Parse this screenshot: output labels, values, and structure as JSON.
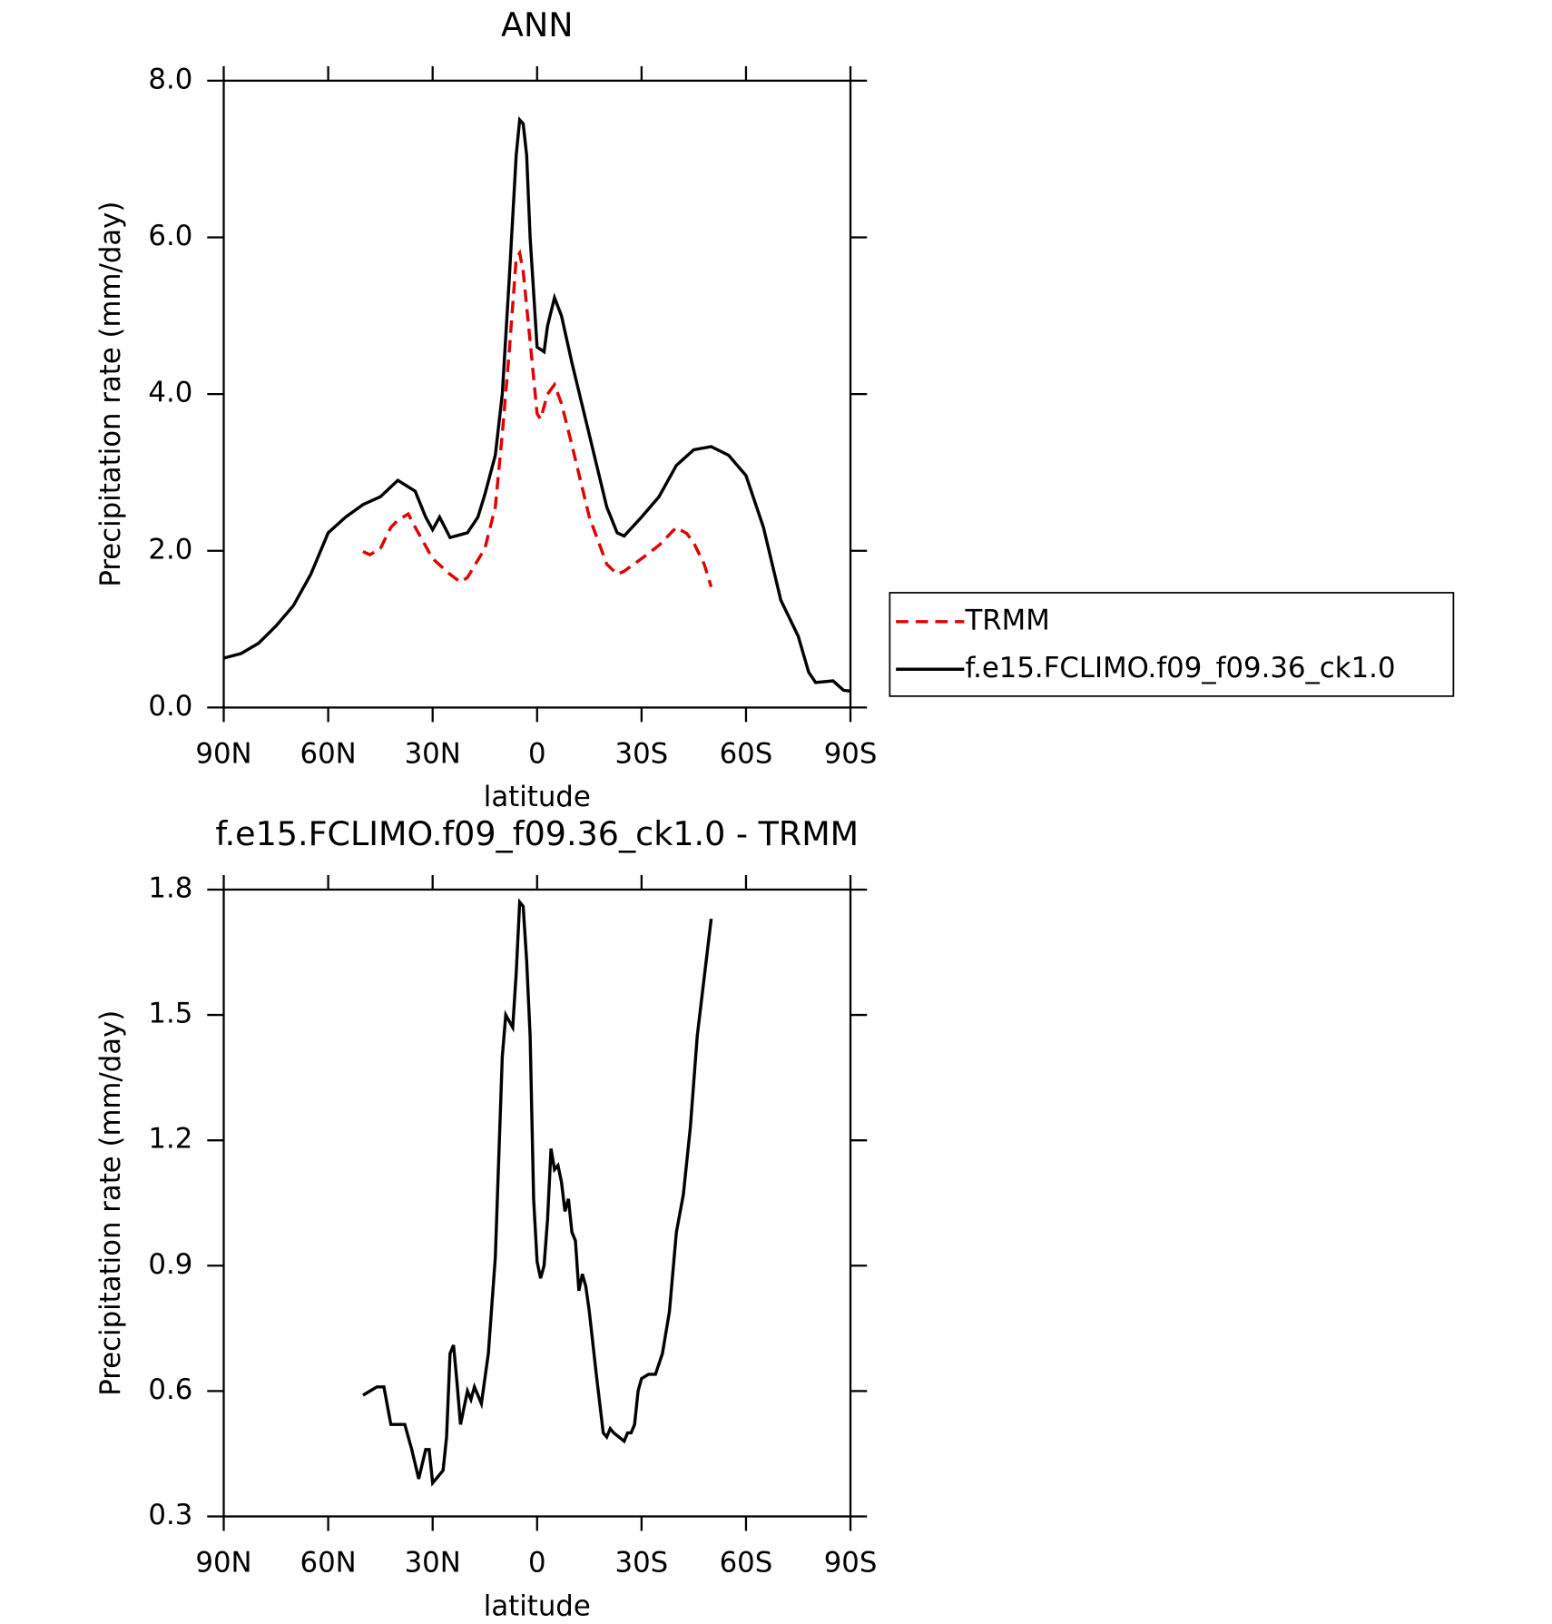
{
  "chart_data": [
    {
      "type": "line",
      "title": "ANN",
      "xlabel": "latitude",
      "ylabel": "Precipitation rate (mm/day)",
      "xlim": [
        90,
        -90
      ],
      "xticks": [
        {
          "value": 90,
          "label": "90N"
        },
        {
          "value": 60,
          "label": "60N"
        },
        {
          "value": 30,
          "label": "30N"
        },
        0,
        {
          "value": -30,
          "label": "30S"
        },
        {
          "value": -60,
          "label": "60S"
        },
        {
          "value": -90,
          "label": "90S"
        }
      ],
      "ylim": [
        0,
        8
      ],
      "yticks": [
        {
          "value": 0,
          "label": "0.0"
        },
        {
          "value": 2,
          "label": "2.0"
        },
        {
          "value": 4,
          "label": "4.0"
        },
        {
          "value": 6,
          "label": "6.0"
        },
        {
          "value": 8,
          "label": "8.0"
        }
      ],
      "legend": "right",
      "series": [
        {
          "name": "TRMM",
          "color": "#e00000",
          "linestyle": "dashed",
          "x": [
            50,
            48,
            45,
            42,
            40,
            37,
            35,
            30,
            25,
            22,
            20,
            15,
            12,
            10,
            8,
            6,
            5,
            4,
            2,
            0,
            -1,
            -3,
            -5,
            -7,
            -10,
            -15,
            -20,
            -23,
            -25,
            -30,
            -35,
            -40,
            -43,
            -45,
            -48,
            -50
          ],
          "values": [
            1.99,
            1.95,
            2.03,
            2.3,
            2.39,
            2.47,
            2.3,
            1.9,
            1.7,
            1.6,
            1.66,
            2.03,
            2.56,
            3.49,
            4.54,
            5.73,
            5.8,
            5.57,
            4.67,
            3.75,
            3.68,
            4.0,
            4.12,
            3.88,
            3.35,
            2.43,
            1.83,
            1.7,
            1.74,
            1.9,
            2.07,
            2.3,
            2.22,
            2.1,
            1.83,
            1.54
          ]
        },
        {
          "name": "f.e15.FCLIMO.f09_f09.36_ck1.0",
          "color": "#000000",
          "linestyle": "solid",
          "x": [
            90,
            85,
            80,
            75,
            70,
            65,
            60,
            55,
            50,
            45,
            40,
            35,
            32,
            30,
            28,
            25,
            20,
            17,
            15,
            12,
            10,
            8,
            6,
            5,
            4,
            3,
            2,
            0,
            -2,
            -3,
            -5,
            -7,
            -10,
            -15,
            -20,
            -23,
            -25,
            -30,
            -35,
            -40,
            -45,
            -50,
            -55,
            -60,
            -65,
            -70,
            -75,
            -78,
            -80,
            -85,
            -88,
            -90
          ],
          "values": [
            0.63,
            0.69,
            0.82,
            1.04,
            1.3,
            1.7,
            2.23,
            2.43,
            2.59,
            2.69,
            2.9,
            2.76,
            2.43,
            2.27,
            2.43,
            2.17,
            2.23,
            2.43,
            2.72,
            3.22,
            4.0,
            5.47,
            7.05,
            7.5,
            7.45,
            7.05,
            6.0,
            4.6,
            4.54,
            4.87,
            5.23,
            5.0,
            4.4,
            3.48,
            2.56,
            2.23,
            2.19,
            2.43,
            2.69,
            3.09,
            3.29,
            3.33,
            3.22,
            2.96,
            2.3,
            1.37,
            0.91,
            0.45,
            0.32,
            0.34,
            0.22,
            0.21
          ]
        }
      ]
    },
    {
      "type": "line",
      "title": "f.e15.FCLIMO.f09_f09.36_ck1.0 - TRMM",
      "xlabel": "latitude",
      "ylabel": "Precipitation rate (mm/day)",
      "xlim": [
        90,
        -90
      ],
      "xticks": [
        {
          "value": 90,
          "label": "90N"
        },
        {
          "value": 60,
          "label": "60N"
        },
        {
          "value": 30,
          "label": "30N"
        },
        0,
        {
          "value": -30,
          "label": "30S"
        },
        {
          "value": -60,
          "label": "60S"
        },
        {
          "value": -90,
          "label": "90S"
        }
      ],
      "ylim": [
        0.3,
        1.8
      ],
      "yticks": [
        0.3,
        0.6,
        0.9,
        1.2,
        1.5,
        1.8
      ],
      "series": [
        {
          "color": "#000000",
          "linestyle": "solid",
          "x": [
            50,
            48,
            46,
            44,
            42,
            40,
            38,
            36,
            34,
            32,
            31,
            30,
            28,
            27,
            26,
            25,
            24,
            23,
            22,
            20,
            19,
            18,
            16,
            14,
            12,
            10,
            9,
            7,
            6,
            5,
            4,
            3,
            2,
            1,
            0,
            -1,
            -2,
            -3,
            -4,
            -5,
            -6,
            -7,
            -8,
            -9,
            -10,
            -11,
            -12,
            -13,
            -14,
            -15,
            -17,
            -19,
            -20,
            -21,
            -22,
            -25,
            -26,
            -27,
            -28,
            -29,
            -30,
            -32,
            -34,
            -36,
            -38,
            -40,
            -42,
            -44,
            -46,
            -48,
            -50
          ],
          "values": [
            0.59,
            0.6,
            0.61,
            0.61,
            0.52,
            0.52,
            0.52,
            0.46,
            0.39,
            0.46,
            0.46,
            0.38,
            0.4,
            0.41,
            0.49,
            0.69,
            0.71,
            0.62,
            0.52,
            0.6,
            0.58,
            0.61,
            0.57,
            0.69,
            0.92,
            1.4,
            1.5,
            1.47,
            1.6,
            1.77,
            1.76,
            1.63,
            1.45,
            1.06,
            0.91,
            0.87,
            0.9,
            1.01,
            1.18,
            1.13,
            1.14,
            1.1,
            1.03,
            1.06,
            0.98,
            0.96,
            0.84,
            0.88,
            0.85,
            0.79,
            0.64,
            0.5,
            0.49,
            0.51,
            0.5,
            0.48,
            0.5,
            0.5,
            0.52,
            0.6,
            0.63,
            0.64,
            0.64,
            0.69,
            0.79,
            0.98,
            1.07,
            1.23,
            1.45,
            1.59,
            1.73
          ]
        }
      ]
    }
  ]
}
